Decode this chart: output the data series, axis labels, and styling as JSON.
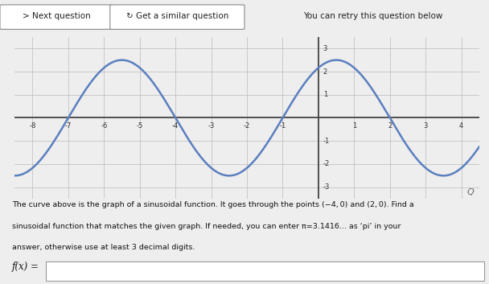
{
  "amplitude": 2.5,
  "period": 6,
  "x_min": -8.5,
  "x_max": 4.5,
  "y_min": -3.5,
  "y_max": 3.5,
  "x_ticks": [
    -8,
    -7,
    -6,
    -5,
    -4,
    -3,
    -2,
    -1,
    1,
    2,
    3,
    4
  ],
  "y_ticks": [
    -3,
    -2,
    -1,
    1,
    2,
    3
  ],
  "curve_color": "#5B7FBF",
  "grid_color": "#BBBBBB",
  "axis_color": "#444444",
  "graph_bg": "#D8DCE8",
  "page_bg": "#EEEEEE",
  "description_line1": "The curve above is the graph of a sinusoidal function. It goes through the points (−4, 0) and (2, 0). Find a",
  "description_line2": "sinusoidal function that matches the given graph. If needed, you can enter π=3.1416... as ‘pi’ in your",
  "description_line3": "answer, otherwise use at least 3 decimal digits.",
  "fx_label": "f(x) =",
  "btn1": "> Next question",
  "btn2": "↻ Get a similar question",
  "btn3": "You can retry this question below"
}
